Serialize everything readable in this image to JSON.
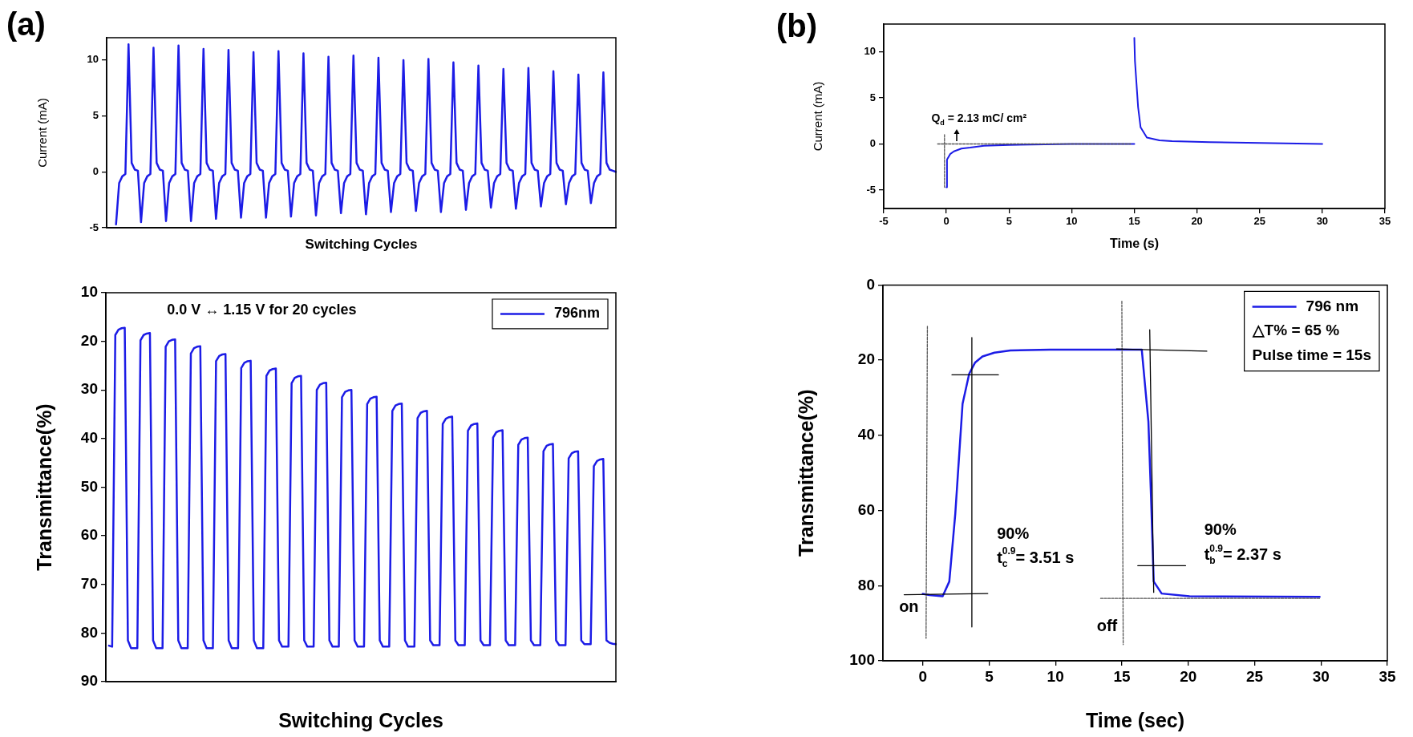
{
  "chart_data": [
    {
      "type": "line",
      "title": "(a)",
      "xlabel": "Switching Cycles",
      "ylabel": "Current (mA)",
      "tick_labels": "y",
      "ylim": [
        -5,
        12
      ],
      "yticks": [
        -5,
        0,
        5,
        10
      ],
      "categories": [
        null,
        null,
        null,
        null,
        null,
        null,
        null,
        null,
        null,
        null,
        null,
        null,
        null,
        null,
        null,
        null,
        null,
        null,
        null,
        null,
        null,
        null,
        null,
        null,
        null,
        null,
        null,
        null,
        null,
        null,
        null,
        null,
        null,
        null,
        null,
        null,
        null,
        null,
        null,
        null,
        null,
        null,
        null,
        null,
        null,
        null,
        null,
        null,
        null,
        null,
        null,
        null,
        null,
        null,
        null,
        null,
        null,
        null,
        null,
        null,
        null,
        null,
        null,
        null,
        null,
        null,
        null,
        null,
        null,
        null,
        null,
        null,
        null,
        null,
        null,
        null,
        null,
        null,
        null,
        null,
        null,
        null,
        null,
        null,
        null,
        null,
        null,
        null,
        null,
        null,
        null,
        null,
        null,
        null,
        null,
        null,
        null,
        null,
        null,
        null,
        null,
        null,
        null,
        null,
        null,
        null,
        null,
        null,
        null,
        null,
        null,
        null,
        null,
        null,
        null,
        null,
        null,
        null,
        null,
        null,
        null,
        null,
        null,
        null,
        null,
        null,
        null,
        null,
        null,
        null,
        null,
        null,
        null,
        null,
        null,
        null,
        null,
        null,
        null,
        null,
        null,
        null,
        null,
        null,
        null,
        null,
        null,
        null,
        null,
        null,
        null,
        null,
        null,
        null,
        null,
        null,
        null,
        null,
        null,
        null,
        null,
        null,
        null,
        null
      ],
      "series": [
        {
          "color": "#1c1ce6",
          "values": [
            null,
            null,
            null,
            -4.7,
            -1.0,
            -0.4,
            -0.2,
            11.4,
            0.8,
            0.2,
            0.1,
            -4.5,
            -1.0,
            -0.4,
            -0.2,
            11.1,
            0.8,
            0.2,
            0.1,
            -4.4,
            -1.0,
            -0.4,
            -0.2,
            11.3,
            0.8,
            0.2,
            0.1,
            -4.4,
            -1.0,
            -0.4,
            -0.2,
            11.0,
            0.8,
            0.2,
            0.1,
            -4.2,
            -1.0,
            -0.4,
            -0.2,
            10.9,
            0.8,
            0.2,
            0.1,
            -4.1,
            -1.0,
            -0.4,
            -0.2,
            10.7,
            0.8,
            0.2,
            0.1,
            -4.1,
            -1.0,
            -0.4,
            -0.2,
            10.8,
            0.8,
            0.2,
            0.1,
            -4.0,
            -1.0,
            -0.4,
            -0.2,
            10.6,
            0.8,
            0.2,
            0.1,
            -3.9,
            -1.0,
            -0.4,
            -0.2,
            10.3,
            0.8,
            0.2,
            0.1,
            -3.7,
            -1.0,
            -0.4,
            -0.2,
            10.4,
            0.8,
            0.2,
            0.1,
            -3.8,
            -1.0,
            -0.4,
            -0.2,
            10.2,
            0.8,
            0.2,
            0.1,
            -3.6,
            -1.0,
            -0.4,
            -0.2,
            10.0,
            0.8,
            0.2,
            0.1,
            -3.5,
            -1.0,
            -0.4,
            -0.2,
            10.1,
            0.8,
            0.2,
            0.1,
            -3.6,
            -1.0,
            -0.4,
            -0.2,
            9.8,
            0.8,
            0.2,
            0.1,
            -3.4,
            -1.0,
            -0.4,
            -0.2,
            9.5,
            0.8,
            0.2,
            0.1,
            -3.2,
            -1.0,
            -0.4,
            -0.2,
            9.2,
            0.8,
            0.2,
            0.1,
            -3.3,
            -1.0,
            -0.4,
            -0.2,
            9.3,
            0.8,
            0.2,
            0.1,
            -3.1,
            -1.0,
            -0.4,
            -0.2,
            9.0,
            0.8,
            0.2,
            0.1,
            -2.9,
            -1.0,
            -0.4,
            -0.2,
            8.7,
            0.8,
            0.2,
            0.1,
            -2.8,
            -1.0,
            -0.4,
            -0.2,
            8.9,
            0.8,
            0.2,
            0.1,
            0
          ]
        }
      ]
    },
    {
      "type": "line",
      "xlabel": "Switching Cycles",
      "ylabel": "Transmittance(%)",
      "tick_labels": "y",
      "ylim": [
        90,
        10
      ],
      "yticks": [
        10,
        20,
        30,
        40,
        50,
        60,
        70,
        80,
        90
      ],
      "legend": "top right",
      "annotations": [
        "0.0 V ↔ 1.15 V for 20 cycles"
      ],
      "categories": [
        null,
        null,
        null,
        null,
        null,
        null,
        null,
        null,
        null,
        null,
        null,
        null,
        null,
        null,
        null,
        null,
        null,
        null,
        null,
        null,
        null,
        null,
        null,
        null,
        null,
        null,
        null,
        null,
        null,
        null,
        null,
        null,
        null,
        null,
        null,
        null,
        null,
        null,
        null,
        null,
        null,
        null,
        null,
        null,
        null,
        null,
        null,
        null,
        null,
        null,
        null,
        null,
        null,
        null,
        null,
        null,
        null,
        null,
        null,
        null,
        null,
        null,
        null,
        null,
        null,
        null,
        null,
        null,
        null,
        null,
        null,
        null,
        null,
        null,
        null,
        null,
        null,
        null,
        null,
        null,
        null,
        null,
        null,
        null,
        null,
        null,
        null,
        null,
        null,
        null,
        null,
        null,
        null,
        null,
        null,
        null,
        null,
        null,
        null,
        null,
        null,
        null,
        null,
        null,
        null,
        null,
        null,
        null,
        null,
        null,
        null,
        null,
        null,
        null,
        null,
        null,
        null,
        null,
        null,
        null,
        null,
        null,
        null,
        null,
        null,
        null,
        null,
        null,
        null,
        null,
        null,
        null,
        null,
        null,
        null,
        null,
        null,
        null,
        null,
        null,
        null,
        null,
        null,
        null,
        null,
        null,
        null,
        null,
        null,
        null,
        null,
        null,
        null,
        null,
        null,
        null,
        null,
        null,
        null,
        null,
        null,
        null,
        null
      ],
      "series": [
        {
          "name": "796nm",
          "color": "#1c1ce6",
          "values": [
            null,
            82.6,
            82.8,
            18.7,
            17.6,
            17.3,
            17.2,
            81.5,
            83.1,
            83.1,
            83.1,
            19.8,
            18.7,
            18.4,
            18.3,
            81.5,
            83.1,
            83.1,
            83.1,
            21.1,
            20.0,
            19.7,
            19.6,
            81.5,
            83.1,
            83.1,
            83.1,
            22.5,
            21.4,
            21.1,
            21.0,
            81.5,
            83.1,
            83.1,
            83.1,
            24.1,
            23.0,
            22.7,
            22.6,
            81.5,
            83.1,
            83.1,
            83.1,
            25.5,
            24.4,
            24.1,
            24.0,
            81.5,
            83.1,
            83.1,
            83.1,
            27.1,
            26.0,
            25.7,
            25.6,
            81.5,
            82.8,
            82.8,
            82.8,
            28.6,
            27.5,
            27.2,
            27.1,
            81.5,
            82.8,
            82.8,
            82.8,
            30.0,
            28.9,
            28.6,
            28.5,
            81.5,
            82.8,
            82.8,
            82.8,
            31.5,
            30.4,
            30.1,
            30.0,
            81.5,
            82.8,
            82.8,
            82.8,
            32.9,
            31.8,
            31.5,
            31.4,
            81.5,
            82.8,
            82.8,
            82.8,
            34.3,
            33.2,
            32.9,
            32.8,
            81.5,
            82.8,
            82.8,
            82.8,
            35.8,
            34.7,
            34.4,
            34.3,
            81.5,
            82.5,
            82.5,
            82.5,
            37.0,
            35.9,
            35.6,
            35.5,
            81.5,
            82.5,
            82.5,
            82.5,
            38.4,
            37.3,
            37.0,
            36.9,
            81.5,
            82.5,
            82.5,
            82.5,
            39.8,
            38.7,
            38.4,
            38.3,
            81.5,
            82.5,
            82.5,
            82.5,
            41.3,
            40.2,
            39.9,
            39.8,
            81.5,
            82.5,
            82.5,
            82.5,
            42.6,
            41.5,
            41.2,
            41.1,
            81.5,
            82.5,
            82.5,
            82.5,
            44.1,
            43.0,
            42.7,
            42.6,
            81.5,
            82.3,
            82.3,
            82.3,
            45.7,
            44.6,
            44.3,
            44.2,
            81.5,
            82.0,
            82.2,
            82.3
          ]
        }
      ]
    },
    {
      "type": "line",
      "title": "(b)",
      "xlabel": "Time (s)",
      "ylabel": "Current (mA)",
      "xlim": [
        -5,
        35
      ],
      "xticks": [
        -5,
        0,
        5,
        10,
        15,
        20,
        25,
        30,
        35
      ],
      "ylim": [
        -7,
        13
      ],
      "yticks": [
        -5,
        0,
        5,
        10
      ],
      "annotations": [
        "Q$_{d}$ = 2.13 mC/ cm²"
      ],
      "series": [
        {
          "color": "#1c1ce6",
          "x": [
            0,
            0.05,
            0.3,
            0.6,
            1.2,
            1.9,
            3,
            5,
            10,
            15
          ],
          "values": [
            -4.7,
            -1.7,
            -1.1,
            -0.8,
            -0.5,
            -0.4,
            -0.2,
            -0.1,
            0,
            0
          ]
        },
        {
          "color": "#1c1ce6",
          "x": [
            15,
            15.05,
            15.15,
            15.3,
            15.5,
            16,
            17,
            18,
            21,
            25,
            30
          ],
          "values": [
            11.5,
            9,
            7,
            4,
            1.8,
            0.7,
            0.4,
            0.3,
            0.2,
            0.1,
            0
          ]
        },
        {
          "color": "#555555",
          "line_style": "dotted",
          "x": [
            -0.7,
            14.7
          ],
          "values": [
            0,
            0
          ]
        },
        {
          "color": "#555555",
          "line_style": "dotted",
          "x": [
            -0.15,
            -0.15
          ],
          "values": [
            1.0,
            -4.7
          ]
        }
      ]
    },
    {
      "type": "line",
      "xlabel": "Time (sec)",
      "ylabel": "Transmittance(%)",
      "xlim": [
        -3,
        35
      ],
      "xticks": [
        0,
        5,
        10,
        15,
        20,
        25,
        30,
        35
      ],
      "ylim": [
        100,
        0
      ],
      "yticks": [
        0,
        20,
        40,
        60,
        80,
        100
      ],
      "legend": "top right",
      "annotations": [
        "△T% = 65 %",
        "Pulse time = 15s",
        "on",
        "off",
        "90%",
        "t$_{c}$$^{0.9}$= 3.51 s",
        "90%",
        "t$_{b}$$^{0.9}$= 2.37 s"
      ],
      "series": [
        {
          "name": "796 nm",
          "color": "#1c1ce6",
          "x": [
            0,
            0.5,
            1.5,
            2.0,
            2.45,
            3.0,
            3.5,
            3.95,
            4.5,
            5.4,
            6.6,
            9.6,
            16.5,
            17.0,
            17.2,
            17.4,
            18.0,
            20.1,
            29.9
          ],
          "values": [
            82.2,
            82.5,
            82.8,
            78.9,
            60.9,
            31.6,
            23.6,
            20.6,
            19.0,
            18.0,
            17.4,
            17.2,
            17.2,
            36.4,
            56.6,
            78.9,
            82.1,
            82.8,
            83.0
          ]
        },
        {
          "color": "#000000",
          "x": [
            -1.4,
            4.9
          ],
          "values": [
            82.4,
            82.1
          ]
        },
        {
          "color": "#000000",
          "x": [
            3.7,
            3.7
          ],
          "values": [
            14,
            91
          ]
        },
        {
          "color": "#000000",
          "x": [
            2.2,
            5.7
          ],
          "values": [
            23.9,
            23.9
          ]
        },
        {
          "color": "#000000",
          "x": [
            17.1,
            17.4
          ],
          "values": [
            11.9,
            81.8
          ]
        },
        {
          "color": "#000000",
          "x": [
            14.6,
            21.4
          ],
          "values": [
            17.0,
            17.6
          ]
        },
        {
          "color": "#000000",
          "x": [
            16.2,
            19.8
          ],
          "values": [
            74.7,
            74.7
          ]
        },
        {
          "color": "#555555",
          "line_style": "dotted",
          "x": [
            0.35,
            0.25
          ],
          "values": [
            11,
            94
          ]
        },
        {
          "color": "#555555",
          "line_style": "dotted",
          "x": [
            15.0,
            15.1
          ],
          "values": [
            4.3,
            95.7
          ]
        },
        {
          "color": "#555555",
          "line_style": "dotted",
          "x": [
            13.4,
            29.9
          ],
          "values": [
            83.4,
            83.4
          ]
        }
      ]
    }
  ]
}
